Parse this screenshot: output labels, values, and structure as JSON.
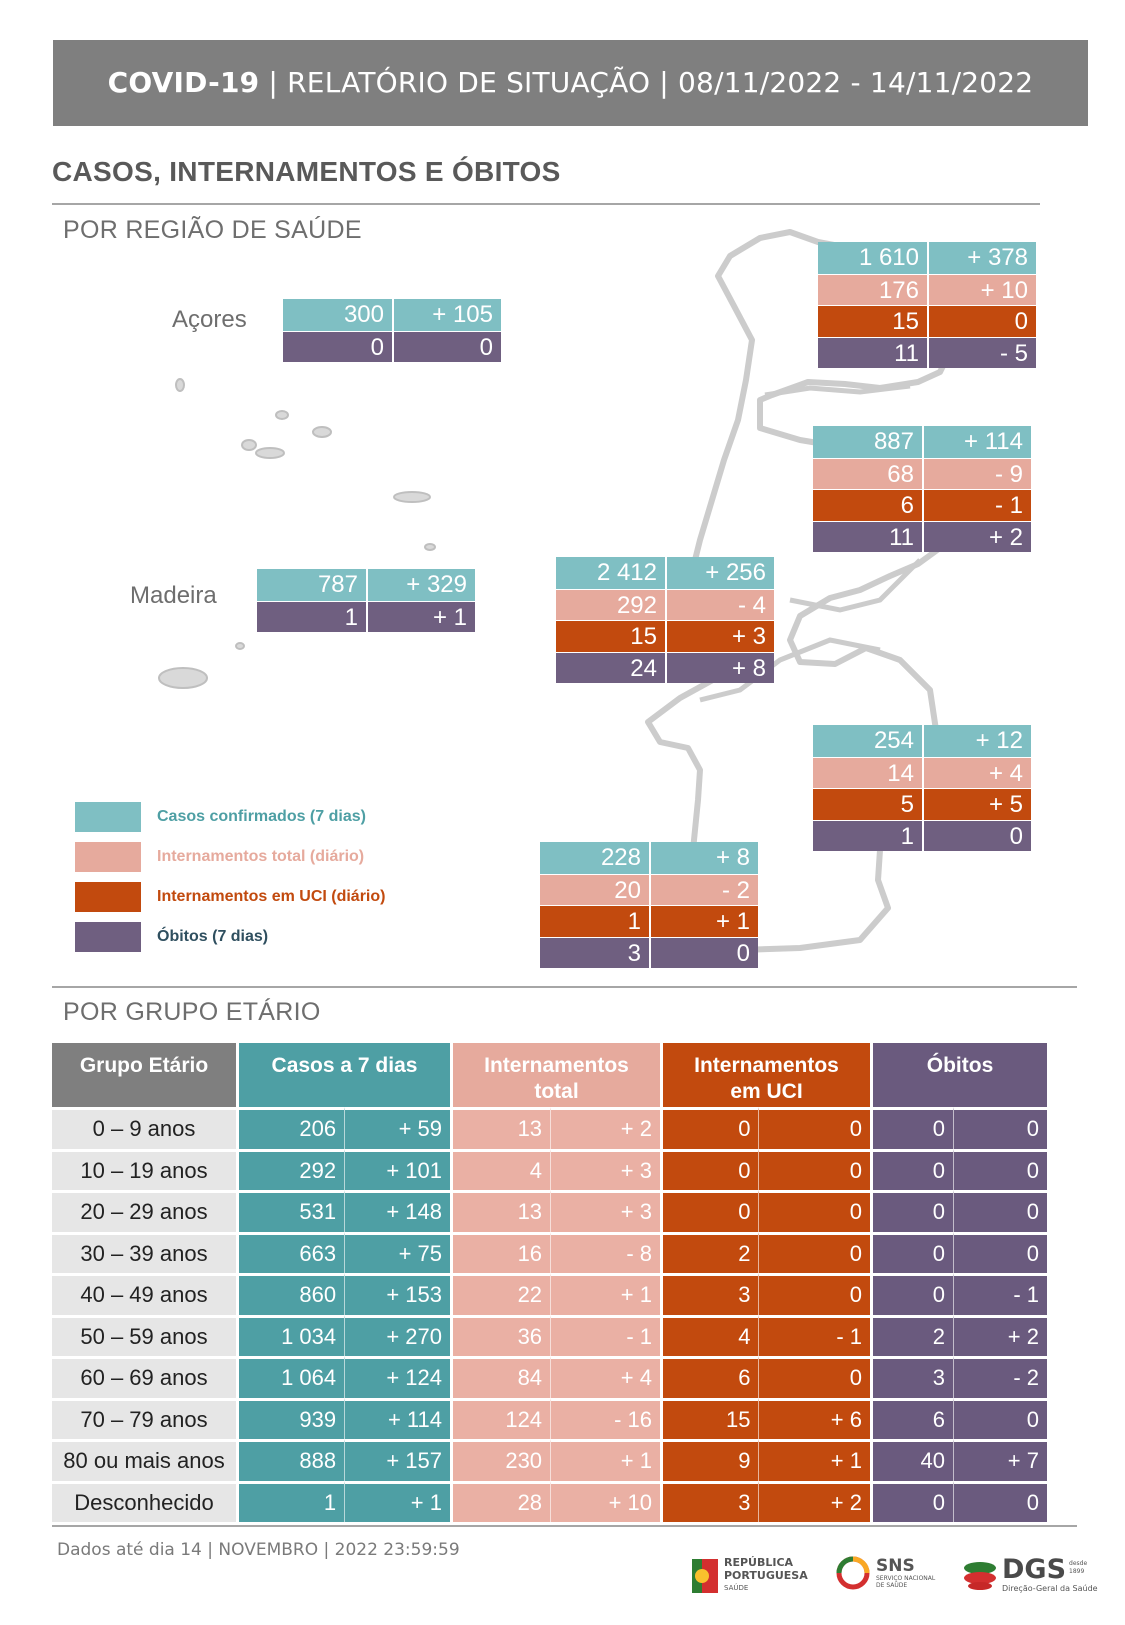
{
  "header": {
    "bold": "COVID-19",
    "rest": " | RELATÓRIO DE SITUAÇÃO | 08/11/2022 - 14/11/2022"
  },
  "section_title": "CASOS, INTERNAMENTOS E ÓBITOS",
  "by_region_title": "POR REGIÃO DE SAÚDE",
  "regions": {
    "acores": {
      "label": "Açores",
      "rows": [
        [
          "300",
          "+ 105"
        ],
        [
          "0",
          "0"
        ]
      ]
    },
    "madeira": {
      "label": "Madeira",
      "rows": [
        [
          "787",
          "+ 329"
        ],
        [
          "1",
          "+ 1"
        ]
      ]
    },
    "norte": {
      "rows": [
        [
          "1 610",
          "+ 378"
        ],
        [
          "176",
          "+ 10"
        ],
        [
          "15",
          "0"
        ],
        [
          "11",
          "- 5"
        ]
      ]
    },
    "centro": {
      "rows": [
        [
          "887",
          "+ 114"
        ],
        [
          "68",
          "- 9"
        ],
        [
          "6",
          "- 1"
        ],
        [
          "11",
          "+ 2"
        ]
      ]
    },
    "lvt": {
      "rows": [
        [
          "2 412",
          "+ 256"
        ],
        [
          "292",
          "- 4"
        ],
        [
          "15",
          "+ 3"
        ],
        [
          "24",
          "+ 8"
        ]
      ]
    },
    "alentejo": {
      "rows": [
        [
          "254",
          "+ 12"
        ],
        [
          "14",
          "+ 4"
        ],
        [
          "5",
          "+ 5"
        ],
        [
          "1",
          "0"
        ]
      ]
    },
    "algarve": {
      "rows": [
        [
          "228",
          "+ 8"
        ],
        [
          "20",
          "- 2"
        ],
        [
          "1",
          "+ 1"
        ],
        [
          "3",
          "0"
        ]
      ]
    }
  },
  "legend": [
    {
      "label": "Casos confirmados (7 dias)",
      "color": "#7fbfc3",
      "text_color": "#4e9fa4"
    },
    {
      "label": "Internamentos total (diário)",
      "color": "#e6aa9d",
      "text_color": "#e6aa9d"
    },
    {
      "label": "Internamentos em UCI (diário)",
      "color": "#c24a0e",
      "text_color": "#c24a0e"
    },
    {
      "label": "Óbitos (7 dias)",
      "color": "#6f5f80",
      "text_color": "#2f4f5f"
    }
  ],
  "by_age_title": "POR GRUPO ETÁRIO",
  "age_table": {
    "headers": {
      "group": "Grupo Etário",
      "cases": "Casos a 7 dias",
      "hosp_1": "Internamentos",
      "hosp_2": "total",
      "icu_1": "Internamentos",
      "icu_2": "em UCI",
      "deaths": "Óbitos"
    },
    "rows": [
      {
        "group": "0 – 9 anos",
        "cases": "206",
        "cases_d": "+ 59",
        "hosp": "13",
        "hosp_d": "+ 2",
        "icu": "0",
        "icu_d": "0",
        "deaths": "0",
        "deaths_d": "0"
      },
      {
        "group": "10 – 19 anos",
        "cases": "292",
        "cases_d": "+ 101",
        "hosp": "4",
        "hosp_d": "+ 3",
        "icu": "0",
        "icu_d": "0",
        "deaths": "0",
        "deaths_d": "0"
      },
      {
        "group": "20 – 29 anos",
        "cases": "531",
        "cases_d": "+ 148",
        "hosp": "13",
        "hosp_d": "+ 3",
        "icu": "0",
        "icu_d": "0",
        "deaths": "0",
        "deaths_d": "0"
      },
      {
        "group": "30 – 39 anos",
        "cases": "663",
        "cases_d": "+ 75",
        "hosp": "16",
        "hosp_d": "- 8",
        "icu": "2",
        "icu_d": "0",
        "deaths": "0",
        "deaths_d": "0"
      },
      {
        "group": "40 – 49 anos",
        "cases": "860",
        "cases_d": "+ 153",
        "hosp": "22",
        "hosp_d": "+ 1",
        "icu": "3",
        "icu_d": "0",
        "deaths": "0",
        "deaths_d": "- 1"
      },
      {
        "group": "50 – 59 anos",
        "cases": "1 034",
        "cases_d": "+ 270",
        "hosp": "36",
        "hosp_d": "- 1",
        "icu": "4",
        "icu_d": "- 1",
        "deaths": "2",
        "deaths_d": "+ 2"
      },
      {
        "group": "60 – 69 anos",
        "cases": "1 064",
        "cases_d": "+ 124",
        "hosp": "84",
        "hosp_d": "+ 4",
        "icu": "6",
        "icu_d": "0",
        "deaths": "3",
        "deaths_d": "- 2"
      },
      {
        "group": "70 – 79 anos",
        "cases": "939",
        "cases_d": "+ 114",
        "hosp": "124",
        "hosp_d": "- 16",
        "icu": "15",
        "icu_d": "+ 6",
        "deaths": "6",
        "deaths_d": "0"
      },
      {
        "group": "80 ou mais anos",
        "cases": "888",
        "cases_d": "+ 157",
        "hosp": "230",
        "hosp_d": "+ 1",
        "icu": "9",
        "icu_d": "+ 1",
        "deaths": "40",
        "deaths_d": "+ 7"
      },
      {
        "group": "Desconhecido",
        "cases": "1",
        "cases_d": "+ 1",
        "hosp": "28",
        "hosp_d": "+ 10",
        "icu": "3",
        "icu_d": "+ 2",
        "deaths": "0",
        "deaths_d": "0"
      }
    ]
  },
  "footer": "Dados até dia 14 | NOVEMBRO | 2022 23:59:59",
  "logos": {
    "republica_1": "REPÚBLICA",
    "republica_2": "PORTUGUESA",
    "republica_3": "SAÚDE",
    "sns": "SNS",
    "sns_sub_1": "SERVIÇO NACIONAL",
    "sns_sub_2": "DE SAÚDE",
    "dgs": "DGS",
    "dgs_since_1": "desde",
    "dgs_since_2": "1899",
    "dgs_sub": "Direção-Geral da Saúde"
  }
}
